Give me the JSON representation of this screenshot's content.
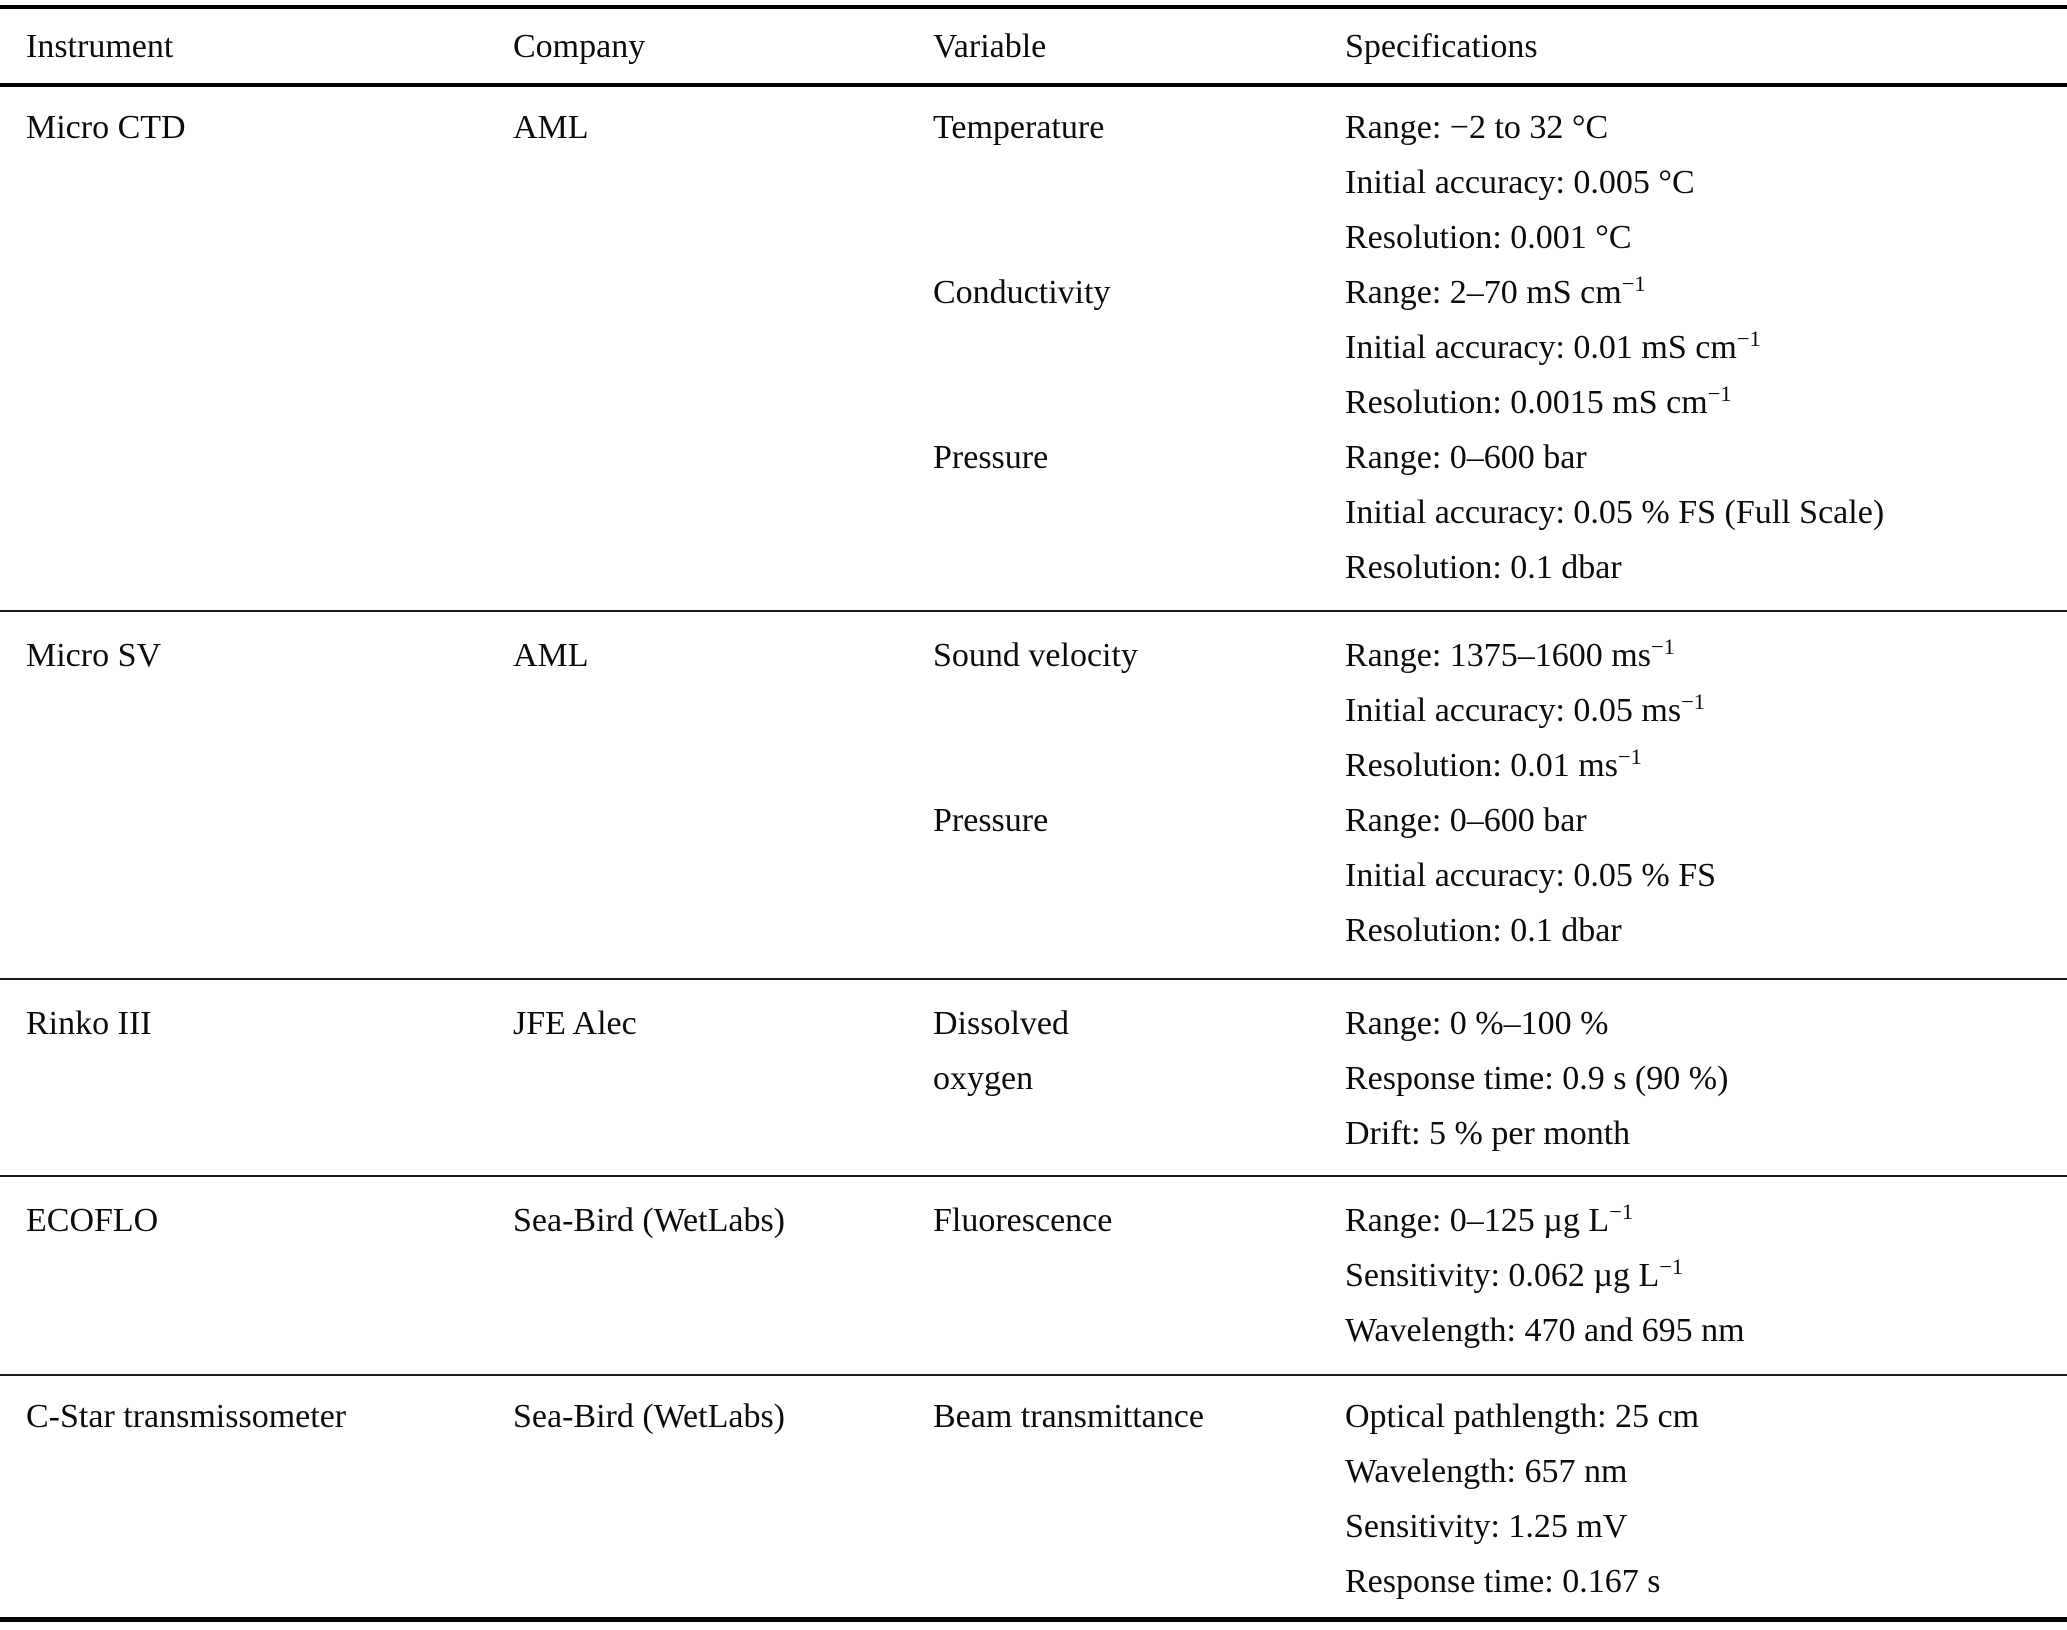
{
  "table": {
    "columns": [
      "Instrument",
      "Company",
      "Variable",
      "Specifications"
    ],
    "rows": [
      {
        "instrument": "Micro CTD",
        "company": "AML",
        "groups": [
          {
            "variable": [
              "Temperature"
            ],
            "specs": [
              "Range: −2 to 32 °C",
              "Initial accuracy: 0.005 °C",
              "Resolution: 0.001 °C"
            ]
          },
          {
            "variable": [
              "Conductivity"
            ],
            "specs": [
              "Range: 2–70 mS cm^{−1}",
              "Initial accuracy: 0.01 mS cm^{−1}",
              "Resolution: 0.0015 mS cm^{−1}"
            ]
          },
          {
            "variable": [
              "Pressure"
            ],
            "specs": [
              "Range: 0–600 bar",
              "Initial accuracy: 0.05 % FS (Full Scale)",
              "Resolution: 0.1 dbar"
            ]
          }
        ]
      },
      {
        "instrument": "Micro SV",
        "company": "AML",
        "groups": [
          {
            "variable": [
              "Sound velocity"
            ],
            "specs": [
              "Range: 1375–1600 ms^{−1}",
              "Initial accuracy: 0.05 ms^{−1}",
              "Resolution: 0.01 ms^{−1}"
            ]
          },
          {
            "variable": [
              "Pressure"
            ],
            "specs": [
              "Range: 0–600 bar",
              "Initial accuracy: 0.05 % FS",
              "Resolution: 0.1 dbar"
            ]
          }
        ]
      },
      {
        "instrument": "Rinko III",
        "company": "JFE Alec",
        "groups": [
          {
            "variable": [
              "Dissolved",
              "oxygen"
            ],
            "specs": [
              "Range: 0 %–100 %",
              "Response time: 0.9 s (90 %)",
              "Drift: 5 % per month"
            ]
          }
        ]
      },
      {
        "instrument": "ECOFLO",
        "company": "Sea-Bird (WetLabs)",
        "groups": [
          {
            "variable": [
              "Fluorescence"
            ],
            "specs": [
              "Range: 0–125 µg L^{−1}",
              "Sensitivity: 0.062 µg L^{−1}",
              "Wavelength: 470 and 695 nm"
            ]
          }
        ]
      },
      {
        "instrument": "C-Star transmissometer",
        "company": "Sea-Bird (WetLabs)",
        "groups": [
          {
            "variable": [
              "Beam transmittance"
            ],
            "specs": [
              "Optical pathlength: 25 cm",
              "Wavelength: 657 nm",
              "Sensitivity: 1.25 mV",
              "Response time: 0.167 s"
            ]
          }
        ]
      }
    ]
  }
}
